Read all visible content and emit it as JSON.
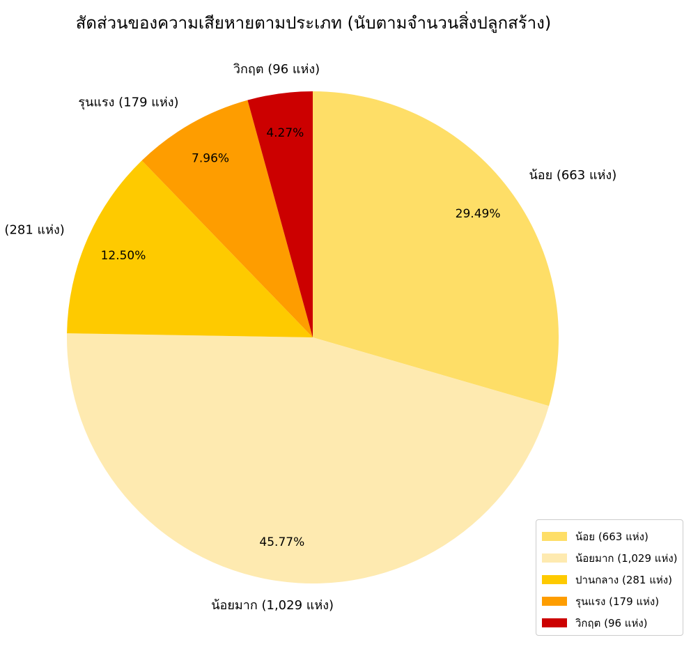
{
  "chart_data": {
    "type": "pie",
    "title": "สัดส่วนของความเสียหายตามประเภท (นับตามจำนวนสิ่งปลูกสร้าง)",
    "start_angle_deg": 90,
    "direction": "clockwise",
    "legend_position": "lower-right",
    "slices": [
      {
        "label": "น้อย (663 แห่ง)",
        "value": 663,
        "percent_label": "29.49%",
        "color": "#FEDE67"
      },
      {
        "label": "น้อยมาก (1,029 แห่ง)",
        "value": 1029,
        "percent_label": "45.77%",
        "color": "#FEEAB0"
      },
      {
        "label": "ปานกลาง (281 แห่ง)",
        "value": 281,
        "percent_label": "12.50%",
        "color": "#FECA00"
      },
      {
        "label": "รุนแรง (179 แห่ง)",
        "value": 179,
        "percent_label": "7.96%",
        "color": "#FE9D00"
      },
      {
        "label": "วิกฤต (96 แห่ง)",
        "value": 96,
        "percent_label": "4.27%",
        "color": "#CC0000"
      }
    ]
  }
}
